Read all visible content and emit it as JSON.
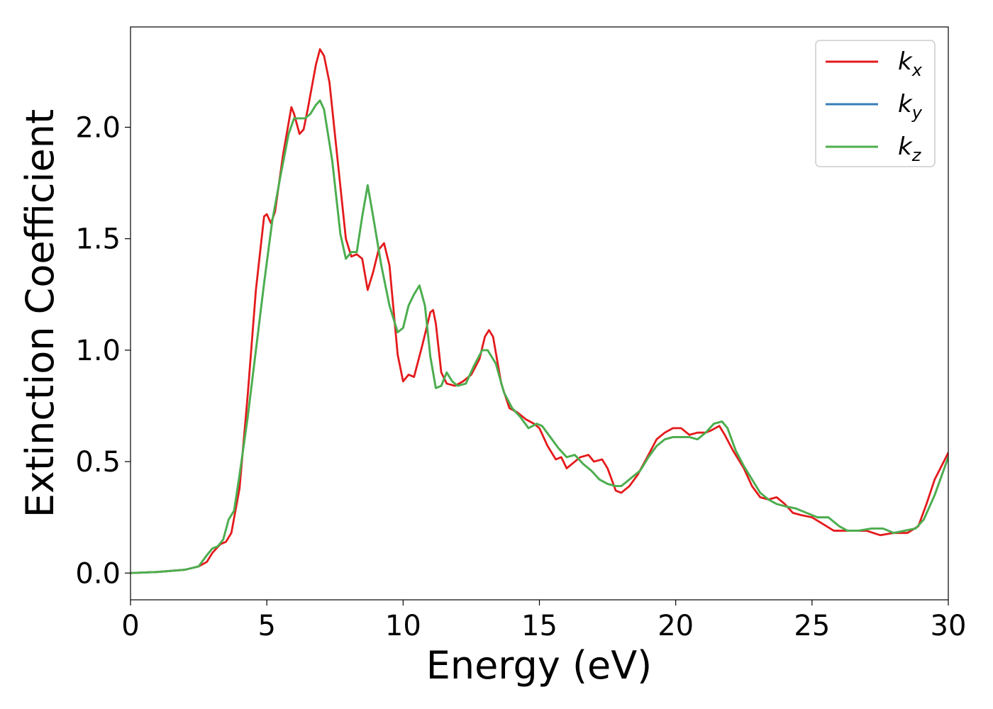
{
  "chart_data": {
    "type": "line",
    "xlabel": "Energy (eV)",
    "ylabel": "Extinction Coefficient",
    "xlim": [
      0,
      30
    ],
    "ylim": [
      -0.12,
      2.45
    ],
    "xticks": [
      0,
      5,
      10,
      15,
      20,
      25,
      30
    ],
    "xtick_labels": [
      "0",
      "5",
      "10",
      "15",
      "20",
      "25",
      "30"
    ],
    "yticks": [
      0.0,
      0.5,
      1.0,
      1.5,
      2.0
    ],
    "ytick_labels": [
      "0.0",
      "0.5",
      "1.0",
      "1.5",
      "2.0"
    ],
    "grid": false,
    "legend_position": "top-right",
    "legend": [
      {
        "base": "k",
        "sub": "x",
        "color": "#e41a1c"
      },
      {
        "base": "k",
        "sub": "y",
        "color": "#377eb8"
      },
      {
        "base": "k",
        "sub": "z",
        "color": "#4daf4a"
      }
    ],
    "series": [
      {
        "color": "#e41a1c",
        "points": [
          [
            0,
            0
          ],
          [
            1,
            0.005
          ],
          [
            2,
            0.015
          ],
          [
            2.5,
            0.03
          ],
          [
            2.8,
            0.05
          ],
          [
            3.0,
            0.09
          ],
          [
            3.3,
            0.13
          ],
          [
            3.5,
            0.14
          ],
          [
            3.7,
            0.18
          ],
          [
            4.0,
            0.38
          ],
          [
            4.3,
            0.8
          ],
          [
            4.6,
            1.27
          ],
          [
            4.9,
            1.6
          ],
          [
            5.0,
            1.61
          ],
          [
            5.15,
            1.57
          ],
          [
            5.3,
            1.62
          ],
          [
            5.6,
            1.88
          ],
          [
            5.9,
            2.09
          ],
          [
            6.0,
            2.06
          ],
          [
            6.2,
            1.97
          ],
          [
            6.35,
            1.99
          ],
          [
            6.5,
            2.08
          ],
          [
            6.8,
            2.28
          ],
          [
            6.95,
            2.35
          ],
          [
            7.1,
            2.32
          ],
          [
            7.3,
            2.2
          ],
          [
            7.6,
            1.85
          ],
          [
            7.9,
            1.5
          ],
          [
            8.1,
            1.42
          ],
          [
            8.3,
            1.43
          ],
          [
            8.5,
            1.41
          ],
          [
            8.7,
            1.27
          ],
          [
            8.9,
            1.35
          ],
          [
            9.1,
            1.45
          ],
          [
            9.3,
            1.48
          ],
          [
            9.5,
            1.38
          ],
          [
            9.8,
            0.98
          ],
          [
            10.0,
            0.86
          ],
          [
            10.2,
            0.89
          ],
          [
            10.4,
            0.88
          ],
          [
            10.7,
            1.02
          ],
          [
            11.0,
            1.17
          ],
          [
            11.1,
            1.18
          ],
          [
            11.2,
            1.12
          ],
          [
            11.4,
            0.9
          ],
          [
            11.6,
            0.85
          ],
          [
            11.9,
            0.84
          ],
          [
            12.2,
            0.86
          ],
          [
            12.5,
            0.89
          ],
          [
            12.8,
            0.96
          ],
          [
            13.0,
            1.06
          ],
          [
            13.15,
            1.09
          ],
          [
            13.3,
            1.06
          ],
          [
            13.6,
            0.85
          ],
          [
            13.9,
            0.74
          ],
          [
            14.2,
            0.72
          ],
          [
            14.5,
            0.69
          ],
          [
            14.8,
            0.67
          ],
          [
            15.0,
            0.65
          ],
          [
            15.3,
            0.57
          ],
          [
            15.6,
            0.51
          ],
          [
            15.8,
            0.52
          ],
          [
            16.0,
            0.47
          ],
          [
            16.2,
            0.49
          ],
          [
            16.5,
            0.52
          ],
          [
            16.8,
            0.53
          ],
          [
            17.0,
            0.5
          ],
          [
            17.3,
            0.51
          ],
          [
            17.5,
            0.47
          ],
          [
            17.8,
            0.37
          ],
          [
            18.0,
            0.36
          ],
          [
            18.3,
            0.39
          ],
          [
            18.6,
            0.44
          ],
          [
            19.0,
            0.53
          ],
          [
            19.3,
            0.6
          ],
          [
            19.6,
            0.63
          ],
          [
            19.9,
            0.65
          ],
          [
            20.2,
            0.65
          ],
          [
            20.5,
            0.62
          ],
          [
            20.8,
            0.63
          ],
          [
            21.1,
            0.63
          ],
          [
            21.3,
            0.64
          ],
          [
            21.6,
            0.66
          ],
          [
            21.8,
            0.62
          ],
          [
            22.1,
            0.55
          ],
          [
            22.5,
            0.47
          ],
          [
            22.8,
            0.39
          ],
          [
            23.1,
            0.34
          ],
          [
            23.4,
            0.33
          ],
          [
            23.7,
            0.34
          ],
          [
            24.0,
            0.31
          ],
          [
            24.3,
            0.27
          ],
          [
            24.6,
            0.26
          ],
          [
            25.0,
            0.25
          ],
          [
            25.4,
            0.22
          ],
          [
            25.8,
            0.19
          ],
          [
            26.1,
            0.19
          ],
          [
            26.5,
            0.19
          ],
          [
            27.0,
            0.19
          ],
          [
            27.5,
            0.17
          ],
          [
            28.0,
            0.18
          ],
          [
            28.5,
            0.18
          ],
          [
            28.9,
            0.21
          ],
          [
            29.2,
            0.31
          ],
          [
            29.5,
            0.42
          ],
          [
            30,
            0.54
          ]
        ]
      },
      {
        "color": "#377eb8",
        "points": [
          [
            0,
            0
          ],
          [
            1,
            0.005
          ],
          [
            2,
            0.015
          ],
          [
            2.5,
            0.03
          ],
          [
            2.8,
            0.08
          ],
          [
            3.0,
            0.11
          ],
          [
            3.2,
            0.12
          ],
          [
            3.4,
            0.15
          ],
          [
            3.6,
            0.24
          ],
          [
            3.8,
            0.28
          ],
          [
            4.0,
            0.44
          ],
          [
            4.3,
            0.7
          ],
          [
            4.6,
            1.0
          ],
          [
            4.9,
            1.3
          ],
          [
            5.2,
            1.58
          ],
          [
            5.5,
            1.78
          ],
          [
            5.8,
            1.97
          ],
          [
            6.0,
            2.04
          ],
          [
            6.2,
            2.04
          ],
          [
            6.4,
            2.04
          ],
          [
            6.6,
            2.06
          ],
          [
            6.8,
            2.1
          ],
          [
            6.95,
            2.12
          ],
          [
            7.1,
            2.08
          ],
          [
            7.4,
            1.85
          ],
          [
            7.7,
            1.52
          ],
          [
            7.9,
            1.41
          ],
          [
            8.1,
            1.44
          ],
          [
            8.3,
            1.44
          ],
          [
            8.5,
            1.6
          ],
          [
            8.7,
            1.74
          ],
          [
            8.9,
            1.6
          ],
          [
            9.2,
            1.38
          ],
          [
            9.5,
            1.2
          ],
          [
            9.8,
            1.08
          ],
          [
            10.0,
            1.1
          ],
          [
            10.2,
            1.2
          ],
          [
            10.4,
            1.25
          ],
          [
            10.6,
            1.29
          ],
          [
            10.8,
            1.2
          ],
          [
            11.0,
            0.97
          ],
          [
            11.2,
            0.83
          ],
          [
            11.4,
            0.84
          ],
          [
            11.6,
            0.9
          ],
          [
            11.8,
            0.86
          ],
          [
            12.0,
            0.84
          ],
          [
            12.3,
            0.85
          ],
          [
            12.6,
            0.93
          ],
          [
            12.9,
            1.0
          ],
          [
            13.1,
            1.0
          ],
          [
            13.4,
            0.94
          ],
          [
            13.7,
            0.81
          ],
          [
            14.0,
            0.74
          ],
          [
            14.3,
            0.7
          ],
          [
            14.6,
            0.65
          ],
          [
            14.9,
            0.67
          ],
          [
            15.1,
            0.66
          ],
          [
            15.4,
            0.61
          ],
          [
            15.7,
            0.56
          ],
          [
            16.0,
            0.52
          ],
          [
            16.3,
            0.53
          ],
          [
            16.6,
            0.49
          ],
          [
            16.9,
            0.46
          ],
          [
            17.2,
            0.42
          ],
          [
            17.5,
            0.4
          ],
          [
            17.8,
            0.39
          ],
          [
            18.0,
            0.39
          ],
          [
            18.3,
            0.42
          ],
          [
            18.7,
            0.46
          ],
          [
            19.0,
            0.52
          ],
          [
            19.3,
            0.57
          ],
          [
            19.6,
            0.6
          ],
          [
            19.9,
            0.61
          ],
          [
            20.2,
            0.61
          ],
          [
            20.5,
            0.61
          ],
          [
            20.8,
            0.6
          ],
          [
            21.1,
            0.63
          ],
          [
            21.4,
            0.67
          ],
          [
            21.7,
            0.68
          ],
          [
            21.9,
            0.65
          ],
          [
            22.2,
            0.55
          ],
          [
            22.5,
            0.48
          ],
          [
            22.8,
            0.42
          ],
          [
            23.1,
            0.36
          ],
          [
            23.4,
            0.33
          ],
          [
            23.7,
            0.31
          ],
          [
            24.0,
            0.3
          ],
          [
            24.4,
            0.29
          ],
          [
            24.8,
            0.27
          ],
          [
            25.2,
            0.25
          ],
          [
            25.6,
            0.25
          ],
          [
            26.0,
            0.21
          ],
          [
            26.3,
            0.19
          ],
          [
            26.7,
            0.19
          ],
          [
            27.2,
            0.2
          ],
          [
            27.6,
            0.2
          ],
          [
            28.0,
            0.18
          ],
          [
            28.4,
            0.19
          ],
          [
            28.8,
            0.2
          ],
          [
            29.1,
            0.24
          ],
          [
            29.5,
            0.35
          ],
          [
            30,
            0.52
          ]
        ]
      },
      {
        "color": "#4daf4a",
        "points": [
          [
            0,
            0
          ],
          [
            1,
            0.005
          ],
          [
            2,
            0.015
          ],
          [
            2.5,
            0.03
          ],
          [
            2.8,
            0.08
          ],
          [
            3.0,
            0.11
          ],
          [
            3.2,
            0.12
          ],
          [
            3.4,
            0.15
          ],
          [
            3.6,
            0.24
          ],
          [
            3.8,
            0.28
          ],
          [
            4.0,
            0.44
          ],
          [
            4.3,
            0.7
          ],
          [
            4.6,
            1.0
          ],
          [
            4.9,
            1.3
          ],
          [
            5.2,
            1.58
          ],
          [
            5.5,
            1.78
          ],
          [
            5.8,
            1.97
          ],
          [
            6.0,
            2.04
          ],
          [
            6.2,
            2.04
          ],
          [
            6.4,
            2.04
          ],
          [
            6.6,
            2.06
          ],
          [
            6.8,
            2.1
          ],
          [
            6.95,
            2.12
          ],
          [
            7.1,
            2.08
          ],
          [
            7.4,
            1.85
          ],
          [
            7.7,
            1.52
          ],
          [
            7.9,
            1.41
          ],
          [
            8.1,
            1.44
          ],
          [
            8.3,
            1.44
          ],
          [
            8.5,
            1.6
          ],
          [
            8.7,
            1.74
          ],
          [
            8.9,
            1.6
          ],
          [
            9.2,
            1.38
          ],
          [
            9.5,
            1.2
          ],
          [
            9.8,
            1.08
          ],
          [
            10.0,
            1.1
          ],
          [
            10.2,
            1.2
          ],
          [
            10.4,
            1.25
          ],
          [
            10.6,
            1.29
          ],
          [
            10.8,
            1.2
          ],
          [
            11.0,
            0.97
          ],
          [
            11.2,
            0.83
          ],
          [
            11.4,
            0.84
          ],
          [
            11.6,
            0.9
          ],
          [
            11.8,
            0.86
          ],
          [
            12.0,
            0.84
          ],
          [
            12.3,
            0.85
          ],
          [
            12.6,
            0.93
          ],
          [
            12.9,
            1.0
          ],
          [
            13.1,
            1.0
          ],
          [
            13.4,
            0.94
          ],
          [
            13.7,
            0.81
          ],
          [
            14.0,
            0.74
          ],
          [
            14.3,
            0.7
          ],
          [
            14.6,
            0.65
          ],
          [
            14.9,
            0.67
          ],
          [
            15.1,
            0.66
          ],
          [
            15.4,
            0.61
          ],
          [
            15.7,
            0.56
          ],
          [
            16.0,
            0.52
          ],
          [
            16.3,
            0.53
          ],
          [
            16.6,
            0.49
          ],
          [
            16.9,
            0.46
          ],
          [
            17.2,
            0.42
          ],
          [
            17.5,
            0.4
          ],
          [
            17.8,
            0.39
          ],
          [
            18.0,
            0.39
          ],
          [
            18.3,
            0.42
          ],
          [
            18.7,
            0.46
          ],
          [
            19.0,
            0.52
          ],
          [
            19.3,
            0.57
          ],
          [
            19.6,
            0.6
          ],
          [
            19.9,
            0.61
          ],
          [
            20.2,
            0.61
          ],
          [
            20.5,
            0.61
          ],
          [
            20.8,
            0.6
          ],
          [
            21.1,
            0.63
          ],
          [
            21.4,
            0.67
          ],
          [
            21.7,
            0.68
          ],
          [
            21.9,
            0.65
          ],
          [
            22.2,
            0.55
          ],
          [
            22.5,
            0.48
          ],
          [
            22.8,
            0.42
          ],
          [
            23.1,
            0.36
          ],
          [
            23.4,
            0.33
          ],
          [
            23.7,
            0.31
          ],
          [
            24.0,
            0.3
          ],
          [
            24.4,
            0.29
          ],
          [
            24.8,
            0.27
          ],
          [
            25.2,
            0.25
          ],
          [
            25.6,
            0.25
          ],
          [
            26.0,
            0.21
          ],
          [
            26.3,
            0.19
          ],
          [
            26.7,
            0.19
          ],
          [
            27.2,
            0.2
          ],
          [
            27.6,
            0.2
          ],
          [
            28.0,
            0.18
          ],
          [
            28.4,
            0.19
          ],
          [
            28.8,
            0.2
          ],
          [
            29.1,
            0.24
          ],
          [
            29.5,
            0.35
          ],
          [
            30,
            0.52
          ]
        ]
      }
    ]
  }
}
